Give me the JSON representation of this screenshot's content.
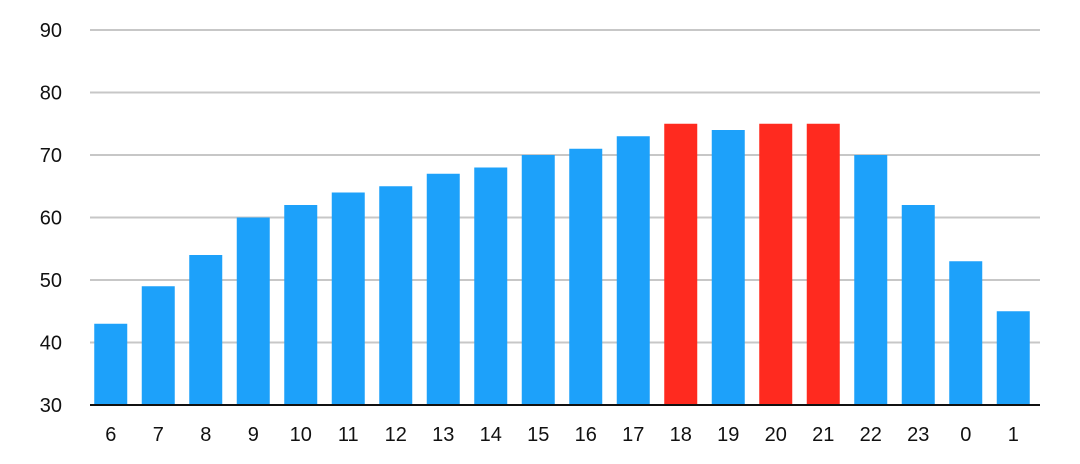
{
  "chart_data": {
    "type": "bar",
    "title": "",
    "xlabel": "",
    "ylabel": "",
    "categories": [
      "6",
      "7",
      "8",
      "9",
      "10",
      "11",
      "12",
      "13",
      "14",
      "15",
      "16",
      "17",
      "18",
      "19",
      "20",
      "21",
      "22",
      "23",
      "0",
      "1"
    ],
    "values": [
      43,
      49,
      54,
      60,
      62,
      64,
      65,
      67,
      68,
      70,
      71,
      73,
      75,
      74,
      75,
      75,
      70,
      62,
      53,
      45
    ],
    "highlighted": [
      "18",
      "20",
      "21"
    ],
    "ylim": [
      30,
      90
    ],
    "yticks": [
      30,
      40,
      50,
      60,
      70,
      80,
      90
    ],
    "grid": true,
    "legend": "none",
    "colors": {
      "bar": "#1da1fa",
      "highlight": "#ff2a1f",
      "grid": "#c7c7c7",
      "axis": "#111111"
    }
  }
}
